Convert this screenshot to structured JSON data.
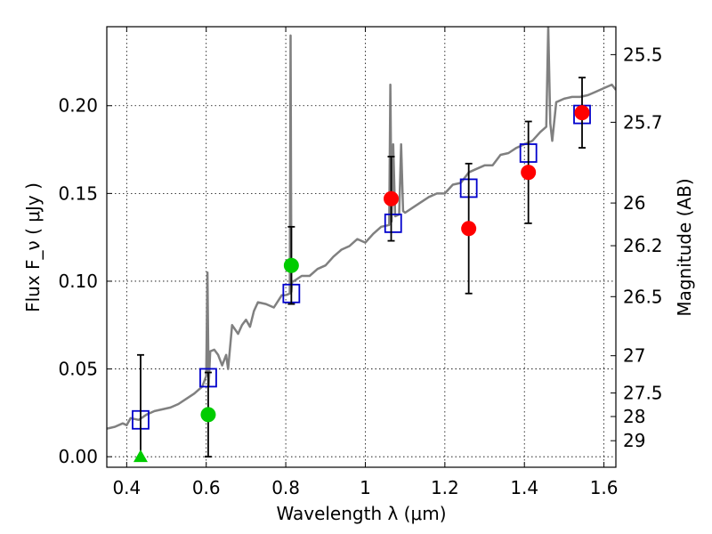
{
  "chart_data": {
    "type": "scatter",
    "xlabel": "Wavelength  λ (μm)",
    "ylabel": "Flux  F_ν  ( μJy )",
    "ylabel_right": "Magnitude (AB)",
    "xlim": [
      0.35,
      1.63
    ],
    "ylim": [
      -0.006,
      0.245
    ],
    "x_ticks": [
      0.4,
      0.6,
      0.8,
      1.0,
      1.2,
      1.4,
      1.6
    ],
    "x_tick_labels": [
      "0.4",
      "0.6",
      "0.8",
      "1",
      "1.2",
      "1.4",
      "1.6"
    ],
    "y_ticks": [
      0.0,
      0.05,
      0.1,
      0.15,
      0.2
    ],
    "y_tick_labels": [
      "0.00",
      "0.05",
      "0.10",
      "0.15",
      "0.20"
    ],
    "right_ticks": [
      {
        "label": "25.5",
        "mag": 25.5
      },
      {
        "label": "25.7",
        "mag": 25.7
      },
      {
        "label": "26",
        "mag": 26.0
      },
      {
        "label": "26.2",
        "mag": 26.2
      },
      {
        "label": "26.5",
        "mag": 26.5
      },
      {
        "label": "27",
        "mag": 27.0
      },
      {
        "label": "27.5",
        "mag": 27.5
      },
      {
        "label": "28",
        "mag": 28.0
      },
      {
        "label": "29",
        "mag": 29.0
      }
    ],
    "grid": true,
    "series": [
      {
        "kind": "line",
        "color": "#808080",
        "x": [
          0.35,
          0.37,
          0.39,
          0.4,
          0.41,
          0.43,
          0.45,
          0.47,
          0.49,
          0.51,
          0.53,
          0.55,
          0.57,
          0.59,
          0.6,
          0.603,
          0.606,
          0.61,
          0.62,
          0.63,
          0.64,
          0.65,
          0.655,
          0.665,
          0.68,
          0.69,
          0.7,
          0.71,
          0.72,
          0.73,
          0.75,
          0.77,
          0.79,
          0.8,
          0.81,
          0.812,
          0.814,
          0.816,
          0.82,
          0.84,
          0.86,
          0.88,
          0.9,
          0.92,
          0.94,
          0.96,
          0.98,
          1.0,
          1.02,
          1.04,
          1.06,
          1.063,
          1.066,
          1.07,
          1.075,
          1.085,
          1.09,
          1.095,
          1.1,
          1.12,
          1.14,
          1.16,
          1.18,
          1.2,
          1.22,
          1.24,
          1.26,
          1.28,
          1.3,
          1.32,
          1.34,
          1.36,
          1.38,
          1.4,
          1.42,
          1.44,
          1.455,
          1.46,
          1.465,
          1.47,
          1.48,
          1.5,
          1.52,
          1.54,
          1.56,
          1.58,
          1.6,
          1.62,
          1.63
        ],
        "y": [
          0.016,
          0.017,
          0.019,
          0.018,
          0.022,
          0.021,
          0.024,
          0.026,
          0.027,
          0.028,
          0.03,
          0.033,
          0.036,
          0.04,
          0.046,
          0.105,
          0.04,
          0.06,
          0.061,
          0.058,
          0.052,
          0.058,
          0.05,
          0.075,
          0.07,
          0.075,
          0.078,
          0.074,
          0.083,
          0.088,
          0.087,
          0.085,
          0.092,
          0.092,
          0.093,
          0.24,
          0.094,
          0.1,
          0.1,
          0.103,
          0.103,
          0.107,
          0.109,
          0.114,
          0.118,
          0.12,
          0.124,
          0.122,
          0.127,
          0.131,
          0.132,
          0.212,
          0.134,
          0.178,
          0.137,
          0.138,
          0.178,
          0.14,
          0.139,
          0.142,
          0.145,
          0.148,
          0.15,
          0.15,
          0.155,
          0.156,
          0.162,
          0.164,
          0.166,
          0.166,
          0.172,
          0.173,
          0.176,
          0.178,
          0.18,
          0.185,
          0.188,
          0.245,
          0.19,
          0.18,
          0.202,
          0.204,
          0.205,
          0.205,
          0.206,
          0.208,
          0.21,
          0.212,
          0.209
        ]
      },
      {
        "kind": "squares",
        "color": "#0000cc",
        "x": [
          0.435,
          0.605,
          0.814,
          1.07,
          1.26,
          1.41,
          1.545
        ],
        "y": [
          0.021,
          0.045,
          0.093,
          0.133,
          0.153,
          0.173,
          0.195
        ]
      },
      {
        "kind": "points",
        "color": "#00cc00",
        "x": [
          0.605,
          0.814
        ],
        "y": [
          0.024,
          0.109
        ],
        "yerr": [
          0.024,
          0.022
        ]
      },
      {
        "kind": "upper-limit-triangle",
        "color": "#00cc00",
        "x": [
          0.435
        ],
        "y": [
          0.0
        ],
        "yerr_up": [
          0.058
        ]
      },
      {
        "kind": "points",
        "color": "#ff0000",
        "x": [
          1.065,
          1.26,
          1.41,
          1.545
        ],
        "y": [
          0.147,
          0.13,
          0.162,
          0.196
        ],
        "yerr": [
          0.024,
          0.037,
          0.029,
          0.02
        ]
      }
    ]
  }
}
